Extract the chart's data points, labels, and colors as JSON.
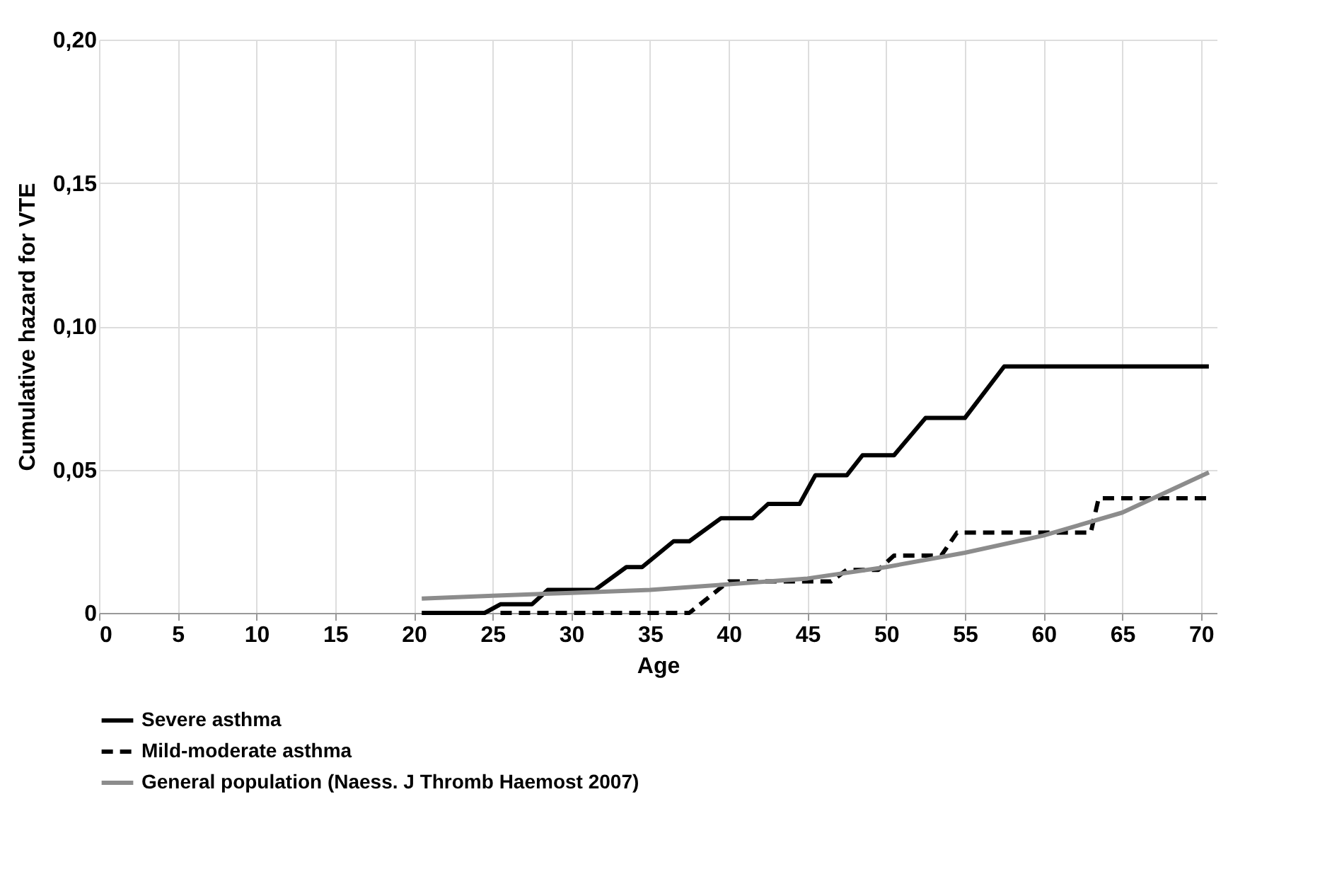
{
  "chart_data": {
    "type": "line",
    "xlabel": "Age",
    "ylabel": "Cumulative hazard for VTE",
    "xlim": [
      0,
      71
    ],
    "xticks": [
      0,
      5,
      10,
      15,
      20,
      25,
      30,
      35,
      40,
      45,
      50,
      55,
      60,
      65,
      70
    ],
    "ylim": [
      0,
      0.2
    ],
    "yticks": [
      0,
      {
        "value": 0.05,
        "label": "0,05"
      },
      {
        "value": 0.1,
        "label": "0,10"
      },
      {
        "value": 0.15,
        "label": "0,15"
      },
      {
        "value": 0.2,
        "label": "0,20"
      }
    ],
    "grid": true,
    "legend": "bottom",
    "marker": "none",
    "series": [
      {
        "name": "Severe asthma",
        "color": "#000000",
        "line_style": "solid",
        "x": [
          20.5,
          24.5,
          25.5,
          27.5,
          28.5,
          31.5,
          33.5,
          34.5,
          36.5,
          37.5,
          39.5,
          41.5,
          42.5,
          44.5,
          45.5,
          47.5,
          48.5,
          50.5,
          52.5,
          55,
          57.5,
          70.5
        ],
        "values": [
          0,
          0,
          0.003,
          0.003,
          0.008,
          0.008,
          0.016,
          0.016,
          0.025,
          0.025,
          0.033,
          0.033,
          0.038,
          0.038,
          0.048,
          0.048,
          0.055,
          0.055,
          0.068,
          0.068,
          0.086,
          0.086
        ]
      },
      {
        "name": "Mild-moderate asthma",
        "color": "#000000",
        "line_style": "dashed",
        "x": [
          25.5,
          37.5,
          40,
          46.5,
          47.5,
          49.5,
          50.5,
          53.5,
          54.5,
          63,
          63.5,
          70.5
        ],
        "values": [
          0,
          0,
          0.011,
          0.011,
          0.015,
          0.015,
          0.02,
          0.02,
          0.028,
          0.028,
          0.04,
          0.04
        ]
      },
      {
        "name": "General population (Naess. J Thromb Haemost 2007)",
        "color": "#8c8c8c",
        "line_style": "solid",
        "x": [
          20.5,
          25,
          30,
          35,
          40,
          45,
          50,
          55,
          60,
          65,
          70.5
        ],
        "values": [
          0.005,
          0.006,
          0.007,
          0.008,
          0.01,
          0.012,
          0.016,
          0.021,
          0.027,
          0.035,
          0.049
        ]
      }
    ]
  }
}
